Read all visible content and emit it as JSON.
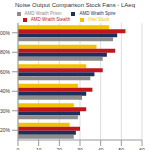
{
  "chart_data": {
    "type": "bar",
    "title": "Noise Output Comparison Stock Fans - LAeq",
    "orientation": "horizontal",
    "categories": [
      "100%",
      "80%",
      "60%",
      "40%",
      "30%",
      "20%"
    ],
    "series": [
      {
        "name": "Intel Stock",
        "color": "#f2c200",
        "values": [
          44,
          38,
          33,
          29,
          27,
          25
        ]
      },
      {
        "name": "AMD Wraith Stealth",
        "color": "#c0161c",
        "values": [
          52,
          47,
          41,
          36,
          33,
          30
        ]
      },
      {
        "name": "AMD Wraith Spire",
        "color": "#1f2f5c",
        "values": [
          48,
          43,
          37,
          33,
          30,
          28
        ]
      },
      {
        "name": "AMD Wraith Prism",
        "color": "#8c8c8c",
        "values": [
          46,
          41,
          35,
          31,
          29,
          27
        ]
      }
    ],
    "xlim": [
      0,
      60
    ],
    "xticks": [
      0,
      10,
      20,
      30,
      40,
      50,
      60
    ],
    "grid": true,
    "legend": "top"
  }
}
